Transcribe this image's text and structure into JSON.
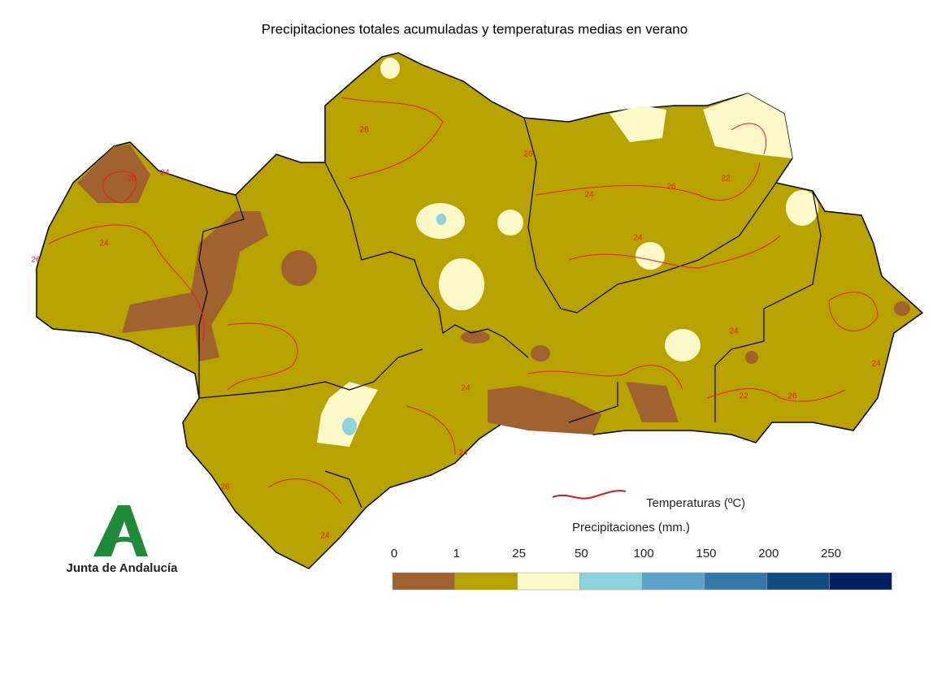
{
  "title": "Precipitaciones totales acumuladas y temperaturas medias en verano",
  "legend": {
    "temperature_label": "Temperaturas (ºC)",
    "precipitation_label": "Precipitaciones (mm.)",
    "scale": [
      {
        "value": 0,
        "color": "#a0622f"
      },
      {
        "value": 1,
        "color": "#b8a200"
      },
      {
        "value": 25,
        "color": "#fdf8c8"
      },
      {
        "value": 50,
        "color": "#8fd3df"
      },
      {
        "value": 100,
        "color": "#5ba3c9"
      },
      {
        "value": 150,
        "color": "#3477a8"
      },
      {
        "value": 200,
        "color": "#124a82"
      },
      {
        "value": 250,
        "color": "#032060"
      }
    ]
  },
  "isotherm_labels": [
    "26",
    "24",
    "26",
    "24",
    "26",
    "26",
    "24",
    "22",
    "24",
    "26",
    "24",
    "22",
    "26",
    "24",
    "24",
    "24",
    "26",
    "24"
  ],
  "logo": {
    "text": "Junta de Andalucía"
  }
}
